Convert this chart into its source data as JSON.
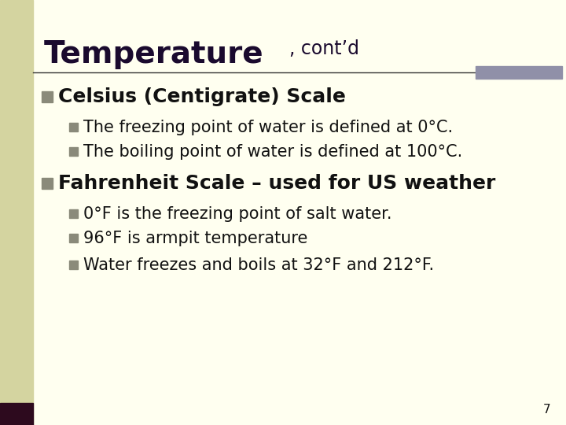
{
  "title_large": "Temperature",
  "title_small": ", cont’d",
  "bg_color": "#fffff0",
  "left_panel_color": "#d4d4a0",
  "left_bar_bottom_color": "#2d0a1e",
  "accent_bar_color": "#9090a8",
  "separator_color": "#333333",
  "title_color": "#1a0a2e",
  "bullet_color": "#8a8a7a",
  "text_color": "#111111",
  "page_number": "7",
  "title_fontsize": 28,
  "title_small_fontsize": 17,
  "bullet_fontsize": 18,
  "sub_fontsize": 15,
  "page_fontsize": 11,
  "bullet1_text": "Celsius (Centigrate) Scale",
  "sub1a": "The freezing point of water is defined at 0°C.",
  "sub1b": "The boiling point of water is defined at 100°C.",
  "bullet2_text": "Fahrenheit Scale – used for US weather",
  "sub2a": "0°F is the freezing point of salt water.",
  "sub2b": "96°F is armpit temperature",
  "sub2c": "Water freezes and boils at 32°F and 212°F."
}
